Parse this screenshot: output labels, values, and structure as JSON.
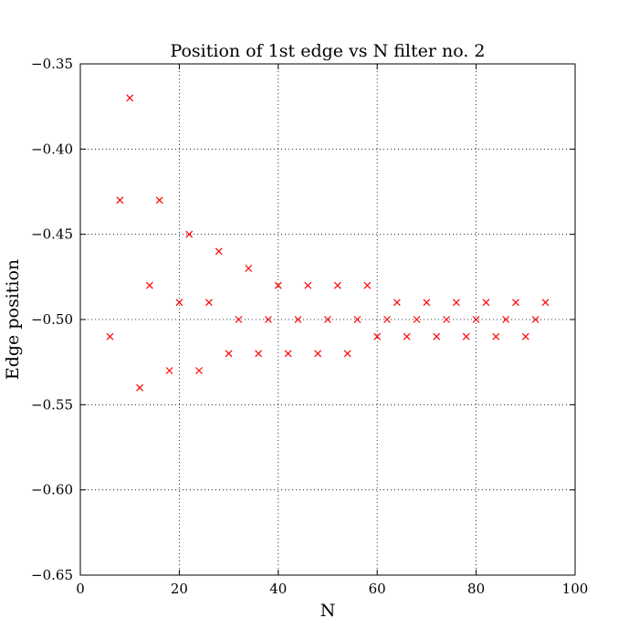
{
  "chart_data": {
    "type": "scatter",
    "title": "Position of 1st edge vs N filter no. 2",
    "xlabel": "N",
    "ylabel": "Edge position",
    "xlim": [
      0,
      100
    ],
    "ylim": [
      -0.65,
      -0.35
    ],
    "x_ticks": [
      0,
      20,
      40,
      60,
      80,
      100
    ],
    "x_tick_labels": [
      "0",
      "20",
      "40",
      "60",
      "80",
      "100"
    ],
    "y_ticks": [
      -0.65,
      -0.6,
      -0.55,
      -0.5,
      -0.45,
      -0.4,
      -0.35
    ],
    "y_tick_labels": [
      "−0.65",
      "−0.60",
      "−0.55",
      "−0.50",
      "−0.45",
      "−0.40",
      "−0.35"
    ],
    "grid": true,
    "marker": "x",
    "marker_color": "#ff0000",
    "series": [
      {
        "x": [
          6,
          8,
          10,
          12,
          14,
          16,
          18,
          20,
          22,
          24,
          26,
          28,
          30,
          32,
          34,
          36,
          38,
          40,
          42,
          44,
          46,
          48,
          50,
          52,
          54,
          56,
          58,
          60,
          62,
          64,
          66,
          68,
          70,
          72,
          74,
          76,
          78,
          80,
          82,
          84,
          86,
          88,
          90,
          92,
          94
        ],
        "y": [
          -0.51,
          -0.43,
          -0.37,
          -0.54,
          -0.48,
          -0.43,
          -0.53,
          -0.49,
          -0.45,
          -0.53,
          -0.49,
          -0.46,
          -0.52,
          -0.5,
          -0.47,
          -0.52,
          -0.5,
          -0.48,
          -0.52,
          -0.5,
          -0.48,
          -0.52,
          -0.5,
          -0.48,
          -0.52,
          -0.5,
          -0.48,
          -0.51,
          -0.5,
          -0.49,
          -0.51,
          -0.5,
          -0.49,
          -0.51,
          -0.5,
          -0.49,
          -0.51,
          -0.5,
          -0.49,
          -0.51,
          -0.5,
          -0.49,
          -0.51,
          -0.5,
          -0.49
        ]
      }
    ]
  }
}
